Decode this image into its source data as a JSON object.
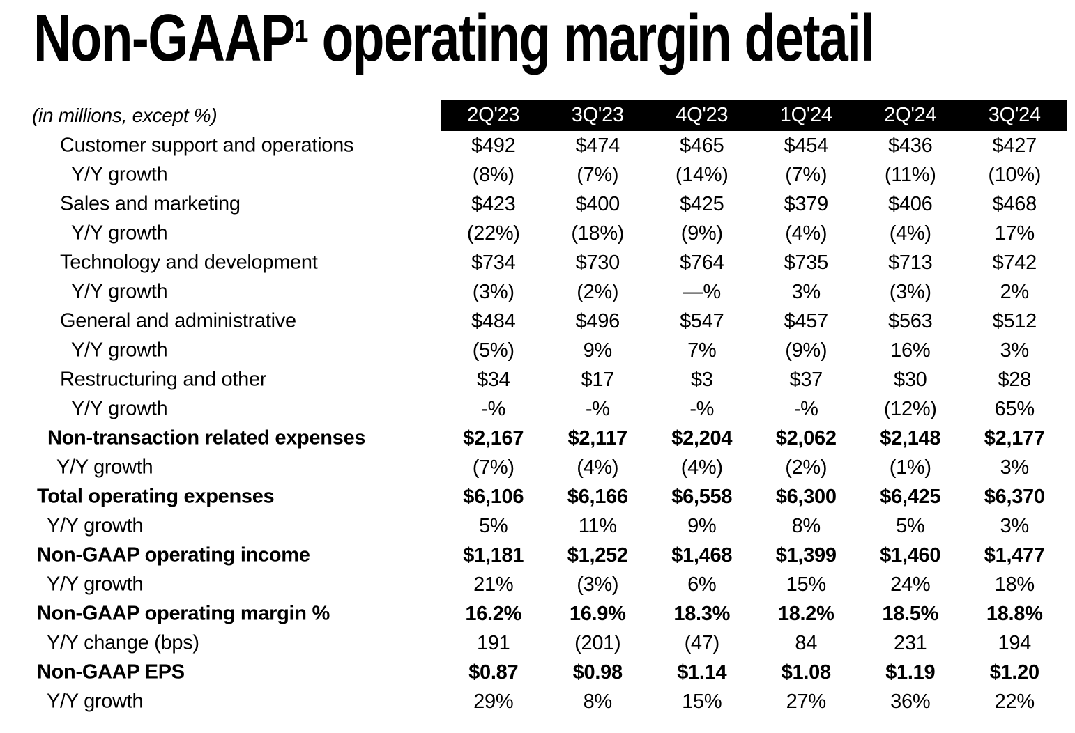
{
  "title": {
    "prefix": "Non-GAAP",
    "superscript": "1",
    "suffix": " operating margin detail"
  },
  "table": {
    "note": "(in millions, except %)",
    "columns": [
      "2Q'23",
      "3Q'23",
      "4Q'23",
      "1Q'24",
      "2Q'24",
      "3Q'24"
    ],
    "rows": [
      {
        "label": "Customer support and operations",
        "indent": "detail",
        "bold": false,
        "values": [
          "$492",
          "$474",
          "$465",
          "$454",
          "$436",
          "$427"
        ]
      },
      {
        "label": "Y/Y growth",
        "indent": "detail-yy",
        "bold": false,
        "values": [
          "(8%)",
          "(7%)",
          "(14%)",
          "(7%)",
          "(11%)",
          "(10%)"
        ]
      },
      {
        "label": "Sales and marketing",
        "indent": "detail",
        "bold": false,
        "values": [
          "$423",
          "$400",
          "$425",
          "$379",
          "$406",
          "$468"
        ]
      },
      {
        "label": "Y/Y growth",
        "indent": "detail-yy",
        "bold": false,
        "values": [
          "(22%)",
          "(18%)",
          "(9%)",
          "(4%)",
          "(4%)",
          "17%"
        ]
      },
      {
        "label": "Technology and development",
        "indent": "detail",
        "bold": false,
        "values": [
          "$734",
          "$730",
          "$764",
          "$735",
          "$713",
          "$742"
        ]
      },
      {
        "label": "Y/Y growth",
        "indent": "detail-yy",
        "bold": false,
        "values": [
          "(3%)",
          "(2%)",
          "—%",
          "3%",
          "(3%)",
          "2%"
        ]
      },
      {
        "label": "General and administrative",
        "indent": "detail",
        "bold": false,
        "values": [
          "$484",
          "$496",
          "$547",
          "$457",
          "$563",
          "$512"
        ]
      },
      {
        "label": "Y/Y growth",
        "indent": "detail-yy",
        "bold": false,
        "values": [
          "(5%)",
          "9%",
          "7%",
          "(9%)",
          "16%",
          "3%"
        ]
      },
      {
        "label": "Restructuring and other",
        "indent": "detail",
        "bold": false,
        "values": [
          "$34",
          "$17",
          "$3",
          "$37",
          "$30",
          "$28"
        ]
      },
      {
        "label": "Y/Y growth",
        "indent": "detail-yy",
        "bold": false,
        "values": [
          "-%",
          "-%",
          "-%",
          "-%",
          "(12%)",
          "65%"
        ]
      },
      {
        "label": "Non-transaction related expenses",
        "indent": "subtotal",
        "bold": true,
        "values": [
          "$2,167",
          "$2,117",
          "$2,204",
          "$2,062",
          "$2,148",
          "$2,177"
        ]
      },
      {
        "label": "Y/Y growth",
        "indent": "subtotal-yy",
        "bold": false,
        "values": [
          "(7%)",
          "(4%)",
          "(4%)",
          "(2%)",
          "(1%)",
          "3%"
        ]
      },
      {
        "label": "Total operating expenses",
        "indent": "total",
        "bold": true,
        "values": [
          "$6,106",
          "$6,166",
          "$6,558",
          "$6,300",
          "$6,425",
          "$6,370"
        ]
      },
      {
        "label": "Y/Y growth",
        "indent": "total-yy",
        "bold": false,
        "values": [
          "5%",
          "11%",
          "9%",
          "8%",
          "5%",
          "3%"
        ]
      },
      {
        "label": "Non-GAAP operating income",
        "indent": "total",
        "bold": true,
        "values": [
          "$1,181",
          "$1,252",
          "$1,468",
          "$1,399",
          "$1,460",
          "$1,477"
        ]
      },
      {
        "label": "Y/Y growth",
        "indent": "total-yy",
        "bold": false,
        "values": [
          "21%",
          "(3%)",
          "6%",
          "15%",
          "24%",
          "18%"
        ]
      },
      {
        "label": "Non-GAAP operating margin %",
        "indent": "total",
        "bold": true,
        "values": [
          "16.2%",
          "16.9%",
          "18.3%",
          "18.2%",
          "18.5%",
          "18.8%"
        ]
      },
      {
        "label": "Y/Y change (bps)",
        "indent": "total-yy",
        "bold": false,
        "values": [
          "191",
          "(201)",
          "(47)",
          "84",
          "231",
          "194"
        ]
      },
      {
        "label": "Non-GAAP EPS",
        "indent": "total",
        "bold": true,
        "values": [
          "$0.87",
          "$0.98",
          "$1.14",
          "$1.08",
          "$1.19",
          "$1.20"
        ]
      },
      {
        "label": "Y/Y growth",
        "indent": "total-yy",
        "bold": false,
        "values": [
          "29%",
          "8%",
          "15%",
          "27%",
          "36%",
          "22%"
        ]
      }
    ]
  },
  "colors": {
    "background": "#ffffff",
    "text": "#000000",
    "header_band_bg": "#000000",
    "header_band_text": "#ffffff"
  }
}
